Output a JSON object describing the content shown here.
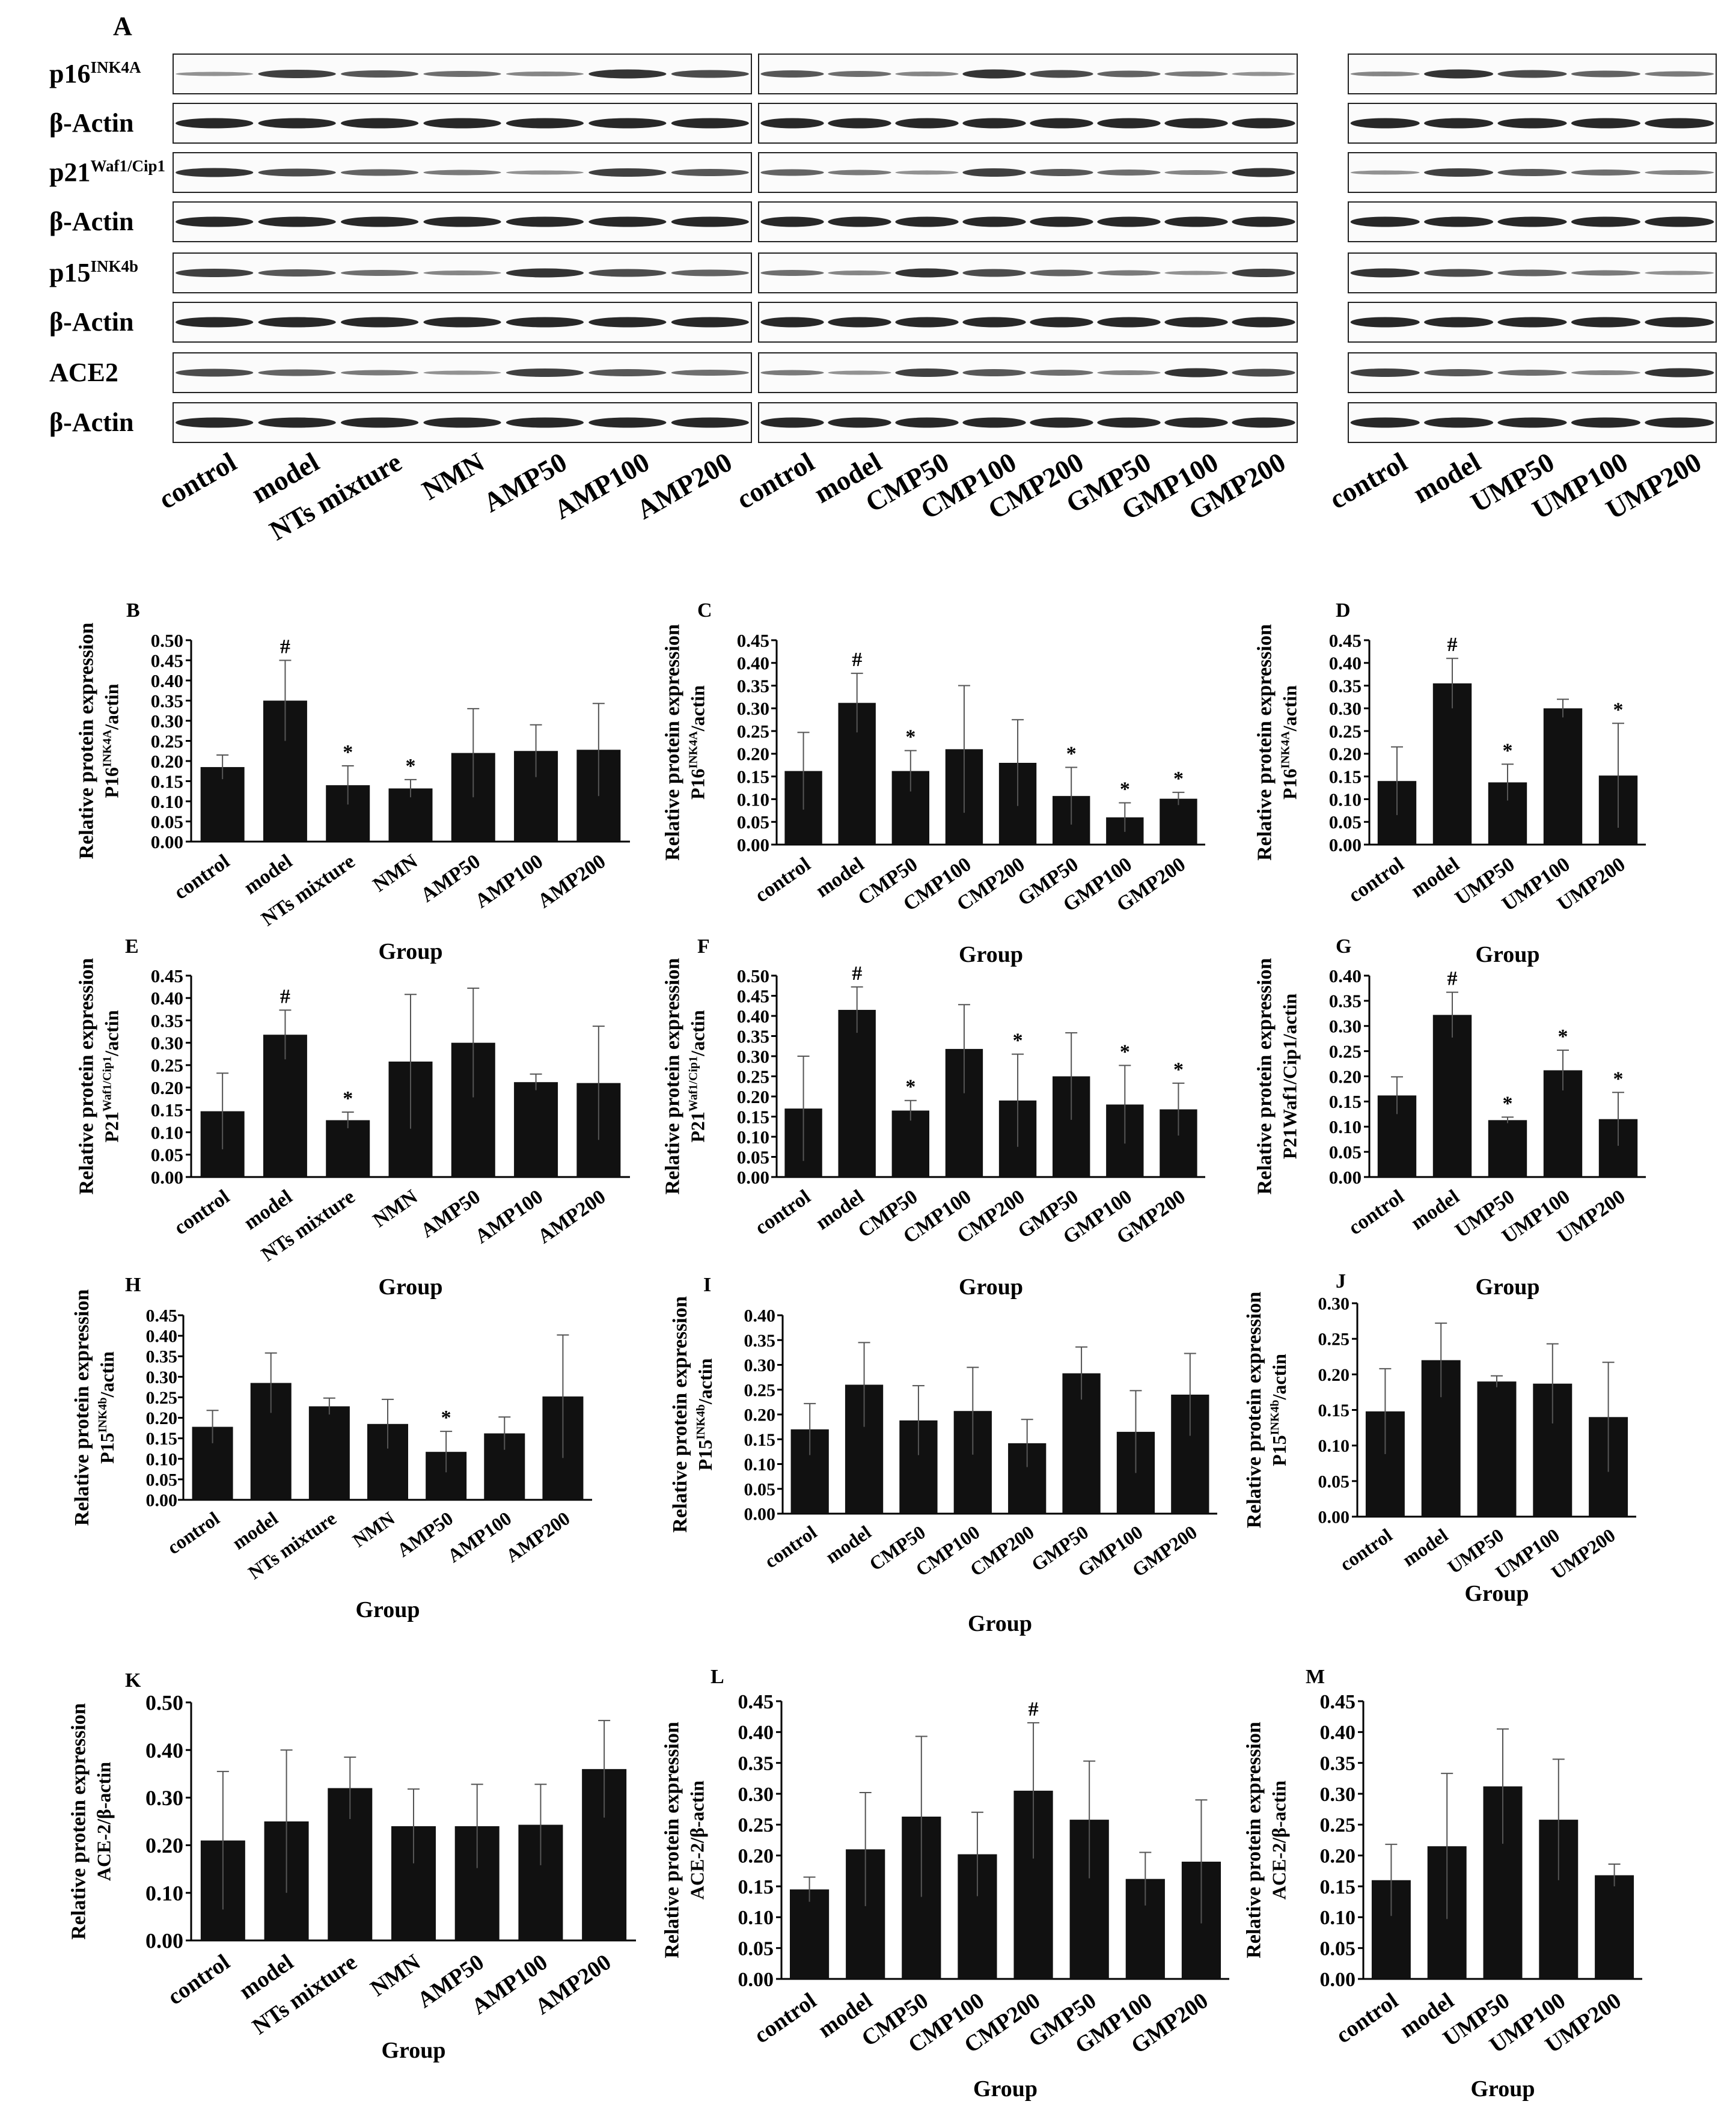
{
  "figure_label": "A",
  "blot": {
    "row_labels": [
      {
        "main": "p16",
        "sup": "INK4A"
      },
      {
        "main": "β-Actin",
        "sup": ""
      },
      {
        "main": "p21",
        "sup": "Waf1/Cip1"
      },
      {
        "main": "β-Actin",
        "sup": ""
      },
      {
        "main": "p15",
        "sup": "INK4b"
      },
      {
        "main": "β-Actin",
        "sup": ""
      },
      {
        "main": "ACE2",
        "sup": ""
      },
      {
        "main": "β-Actin",
        "sup": ""
      }
    ],
    "panels": [
      {
        "lanes": [
          "control",
          "model",
          "NTs mixture",
          "NMN",
          "AMP50",
          "AMP100",
          "AMP200"
        ]
      },
      {
        "lanes": [
          "control",
          "model",
          "CMP50",
          "CMP100",
          "CMP200",
          "GMP50",
          "GMP100",
          "GMP200"
        ]
      },
      {
        "lanes": [
          "control",
          "model",
          "UMP50",
          "UMP100",
          "UMP200"
        ]
      }
    ]
  },
  "chart_data": [
    {
      "id": "B",
      "type": "bar",
      "ylabel_main": "P16",
      "ylabel_sup": "INK4A",
      "ylabel_tail": "/actin",
      "ylabel2": "Relative protein expression",
      "xlabel": "Group",
      "ylim": [
        0,
        0.5
      ],
      "ytick_labels": [
        "0.00",
        "0.05",
        "0.10",
        "0.15",
        "0.20",
        "0.25",
        "0.30",
        "0.35",
        "0.40",
        "0.45",
        "0.50"
      ],
      "categories": [
        "control",
        "model",
        "NTs mixture",
        "NMN",
        "AMP50",
        "AMP100",
        "AMP200"
      ],
      "values": [
        0.185,
        0.35,
        0.14,
        0.132,
        0.22,
        0.225,
        0.228
      ],
      "errors": [
        0.03,
        0.1,
        0.048,
        0.022,
        0.11,
        0.065,
        0.115
      ],
      "marks": [
        "",
        "#",
        "*",
        "*",
        "",
        "",
        ""
      ]
    },
    {
      "id": "C",
      "type": "bar",
      "ylabel_main": "P16",
      "ylabel_sup": "INK4A",
      "ylabel_tail": "/actin",
      "ylabel2": "Relative protein expression",
      "xlabel": "Group",
      "ylim": [
        0,
        0.45
      ],
      "ytick_labels": [
        "0.00",
        "0.05",
        "0.10",
        "0.15",
        "0.20",
        "0.25",
        "0.30",
        "0.35",
        "0.40",
        "0.45"
      ],
      "categories": [
        "control",
        "model",
        "CMP50",
        "CMP100",
        "CMP200",
        "GMP50",
        "GMP100",
        "GMP200"
      ],
      "values": [
        0.162,
        0.312,
        0.162,
        0.21,
        0.18,
        0.107,
        0.06,
        0.101
      ],
      "errors": [
        0.085,
        0.065,
        0.045,
        0.14,
        0.095,
        0.063,
        0.032,
        0.014
      ],
      "marks": [
        "",
        "#",
        "*",
        "",
        "",
        "*",
        "*",
        "*"
      ]
    },
    {
      "id": "D",
      "type": "bar",
      "ylabel_main": "P16",
      "ylabel_sup": "INK4A",
      "ylabel_tail": "/actin",
      "ylabel2": "Relative protein expression",
      "xlabel": "Group",
      "ylim": [
        0,
        0.45
      ],
      "ytick_labels": [
        "0.00",
        "0.05",
        "0.10",
        "0.15",
        "0.20",
        "0.25",
        "0.30",
        "0.35",
        "0.40",
        "0.45"
      ],
      "categories": [
        "control",
        "model",
        "UMP50",
        "UMP100",
        "UMP200"
      ],
      "values": [
        0.14,
        0.355,
        0.137,
        0.3,
        0.152
      ],
      "errors": [
        0.075,
        0.055,
        0.04,
        0.02,
        0.115
      ],
      "marks": [
        "",
        "#",
        "*",
        "",
        "*"
      ]
    },
    {
      "id": "E",
      "type": "bar",
      "ylabel_main": "P21",
      "ylabel_sup": "Waf1/Cip1",
      "ylabel_tail": "/actin",
      "ylabel2": "Relative protein expression",
      "xlabel": "Group",
      "ylim": [
        0,
        0.45
      ],
      "ytick_labels": [
        "0.00",
        "0.05",
        "0.10",
        "0.15",
        "0.20",
        "0.25",
        "0.30",
        "0.35",
        "0.40",
        "0.45"
      ],
      "categories": [
        "control",
        "model",
        "NTs mixture",
        "NMN",
        "AMP50",
        "AMP100",
        "AMP200"
      ],
      "values": [
        0.147,
        0.318,
        0.127,
        0.258,
        0.3,
        0.212,
        0.21
      ],
      "errors": [
        0.085,
        0.055,
        0.018,
        0.15,
        0.122,
        0.018,
        0.127
      ],
      "marks": [
        "",
        "#",
        "*",
        "",
        "",
        "",
        ""
      ]
    },
    {
      "id": "F",
      "type": "bar",
      "ylabel_main": "P21",
      "ylabel_sup": "Waf1/Cip1",
      "ylabel_tail": "/actin",
      "ylabel2": "Relative protein expression",
      "xlabel": "Group",
      "ylim": [
        0,
        0.5
      ],
      "ytick_labels": [
        "0.00",
        "0.05",
        "0.10",
        "0.15",
        "0.20",
        "0.25",
        "0.30",
        "0.35",
        "0.40",
        "0.45",
        "0.50"
      ],
      "categories": [
        "control",
        "model",
        "CMP50",
        "CMP100",
        "CMP200",
        "GMP50",
        "GMP100",
        "GMP200"
      ],
      "values": [
        0.17,
        0.415,
        0.165,
        0.318,
        0.19,
        0.25,
        0.18,
        0.168
      ],
      "errors": [
        0.13,
        0.057,
        0.025,
        0.11,
        0.115,
        0.108,
        0.097,
        0.065
      ],
      "marks": [
        "",
        "#",
        "*",
        "",
        "*",
        "",
        "*",
        "*"
      ]
    },
    {
      "id": "G",
      "type": "bar",
      "ylabel_main": "P21Waf1/Cip1/actin",
      "ylabel_sup": "",
      "ylabel_tail": "",
      "ylabel2": "Relative protein expression",
      "xlabel": "Group",
      "ylim": [
        0,
        0.4
      ],
      "ytick_labels": [
        "0.00",
        "0.05",
        "0.10",
        "0.15",
        "0.20",
        "0.25",
        "0.30",
        "0.35",
        "0.40"
      ],
      "categories": [
        "control",
        "model",
        "UMP50",
        "UMP100",
        "UMP200"
      ],
      "values": [
        0.162,
        0.322,
        0.113,
        0.212,
        0.115
      ],
      "errors": [
        0.037,
        0.045,
        0.006,
        0.04,
        0.053
      ],
      "marks": [
        "",
        "#",
        "*",
        "*",
        "*"
      ]
    },
    {
      "id": "H",
      "type": "bar",
      "ylabel_main": "P15",
      "ylabel_sup": "INK4b",
      "ylabel_tail": "/actin",
      "ylabel2": "Relative protein expression",
      "xlabel": "Group",
      "ylim": [
        0,
        0.45
      ],
      "ytick_labels": [
        "0.00",
        "0.05",
        "0.10",
        "0.15",
        "0.20",
        "0.25",
        "0.30",
        "0.35",
        "0.40",
        "0.45"
      ],
      "categories": [
        "control",
        "model",
        "NTs mixture",
        "NMN",
        "AMP50",
        "AMP100",
        "AMP200"
      ],
      "values": [
        0.178,
        0.285,
        0.228,
        0.185,
        0.117,
        0.162,
        0.252
      ],
      "errors": [
        0.04,
        0.073,
        0.02,
        0.06,
        0.05,
        0.04,
        0.15
      ],
      "marks": [
        "",
        "",
        "",
        "",
        "*",
        "",
        ""
      ]
    },
    {
      "id": "I",
      "type": "bar",
      "ylabel_main": "P15",
      "ylabel_sup": "INK4b",
      "ylabel_tail": "/actin",
      "ylabel2": "Relative protein expression",
      "xlabel": "Group",
      "ylim": [
        0,
        0.4
      ],
      "ytick_labels": [
        "0.00",
        "0.05",
        "0.10",
        "0.15",
        "0.20",
        "0.25",
        "0.30",
        "0.35",
        "0.40"
      ],
      "categories": [
        "control",
        "model",
        "CMP50",
        "CMP100",
        "CMP200",
        "GMP50",
        "GMP100",
        "GMP200"
      ],
      "values": [
        0.17,
        0.26,
        0.188,
        0.207,
        0.142,
        0.283,
        0.165,
        0.24
      ],
      "errors": [
        0.052,
        0.085,
        0.07,
        0.088,
        0.048,
        0.053,
        0.083,
        0.083
      ],
      "marks": [
        "",
        "",
        "",
        "",
        "",
        "",
        "",
        ""
      ]
    },
    {
      "id": "J",
      "type": "bar",
      "ylabel_main": "P15",
      "ylabel_sup": "INK4b",
      "ylabel_tail": "/actin",
      "ylabel2": "Relative protein expression",
      "xlabel": "Group",
      "ylim": [
        0,
        0.3
      ],
      "ytick_labels": [
        "0.00",
        "0.05",
        "0.10",
        "0.15",
        "0.20",
        "0.25",
        "0.30"
      ],
      "categories": [
        "control",
        "model",
        "UMP50",
        "UMP100",
        "UMP200"
      ],
      "values": [
        0.148,
        0.22,
        0.19,
        0.187,
        0.14
      ],
      "errors": [
        0.06,
        0.052,
        0.008,
        0.056,
        0.077
      ],
      "marks": [
        "",
        "",
        "",
        "",
        ""
      ]
    },
    {
      "id": "K",
      "type": "bar",
      "ylabel_main": "ACE-2/β-actin",
      "ylabel_sup": "",
      "ylabel_tail": "",
      "ylabel2": "Relative protein expression",
      "xlabel": "Group",
      "ylim": [
        0,
        0.5
      ],
      "ytick_labels": [
        "0.00",
        "0.10",
        "0.20",
        "0.30",
        "0.40",
        "0.50"
      ],
      "categories": [
        "control",
        "model",
        "NTs mixture",
        "NMN",
        "AMP50",
        "AMP100",
        "AMP200"
      ],
      "values": [
        0.21,
        0.25,
        0.32,
        0.24,
        0.24,
        0.243,
        0.36
      ],
      "errors": [
        0.145,
        0.15,
        0.065,
        0.078,
        0.088,
        0.085,
        0.102
      ],
      "marks": [
        "",
        "",
        "",
        "",
        "",
        "",
        ""
      ]
    },
    {
      "id": "L",
      "type": "bar",
      "ylabel_main": "ACE-2/β-actin",
      "ylabel_sup": "",
      "ylabel_tail": "",
      "ylabel2": "Relative protein expression",
      "xlabel": "Group",
      "ylim": [
        0,
        0.45
      ],
      "ytick_labels": [
        "0.00",
        "0.05",
        "0.10",
        "0.15",
        "0.20",
        "0.25",
        "0.30",
        "0.35",
        "0.40",
        "0.45"
      ],
      "categories": [
        "control",
        "model",
        "CMP50",
        "CMP100",
        "CMP200",
        "GMP50",
        "GMP100",
        "GMP200"
      ],
      "values": [
        0.145,
        0.21,
        0.263,
        0.202,
        0.305,
        0.258,
        0.162,
        0.19
      ],
      "errors": [
        0.02,
        0.092,
        0.13,
        0.068,
        0.11,
        0.095,
        0.043,
        0.1
      ],
      "marks": [
        "",
        "",
        "",
        "",
        "#",
        "",
        "",
        ""
      ]
    },
    {
      "id": "M",
      "type": "bar",
      "ylabel_main": "ACE-2/β-actin",
      "ylabel_sup": "",
      "ylabel_tail": "",
      "ylabel2": "Relative protein expression",
      "xlabel": "Group",
      "ylim": [
        0,
        0.45
      ],
      "ytick_labels": [
        "0.00",
        "0.05",
        "0.10",
        "0.15",
        "0.20",
        "0.25",
        "0.30",
        "0.35",
        "0.40",
        "0.45"
      ],
      "categories": [
        "control",
        "model",
        "UMP50",
        "UMP100",
        "UMP200"
      ],
      "values": [
        0.16,
        0.215,
        0.312,
        0.258,
        0.168
      ],
      "errors": [
        0.058,
        0.118,
        0.093,
        0.098,
        0.018
      ],
      "marks": [
        "",
        "",
        "",
        "",
        ""
      ]
    }
  ]
}
